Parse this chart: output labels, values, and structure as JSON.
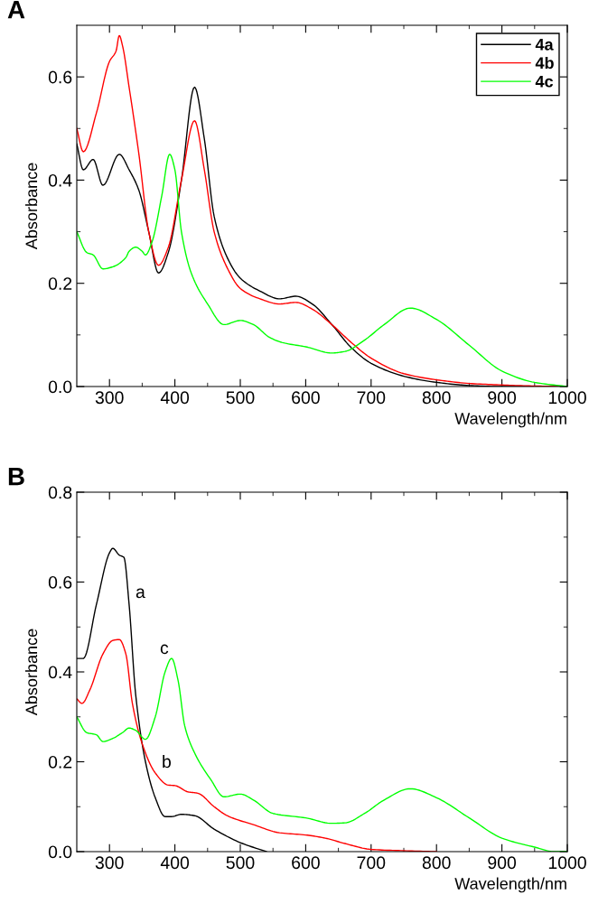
{
  "chart_data": [
    {
      "type": "line",
      "title": "A",
      "xlabel": "Wavelength/nm",
      "ylabel": "Absorbance",
      "xlim": [
        250,
        1000
      ],
      "ylim": [
        0,
        0.7
      ],
      "legend": "top right",
      "grid": false,
      "marker": "none",
      "line_style": "solid",
      "xticks": [
        300,
        {
          "value": 350,
          "label": null
        },
        400,
        {
          "value": 450,
          "label": null
        },
        500,
        {
          "value": 550,
          "label": null
        },
        600,
        {
          "value": 650,
          "label": null
        },
        700,
        {
          "value": 750,
          "label": null
        },
        800,
        {
          "value": 850,
          "label": null
        },
        900,
        {
          "value": 950,
          "label": null
        },
        1000
      ],
      "yticks": [
        {
          "value": 0,
          "label": "0.0"
        },
        {
          "value": 0.1,
          "label": null
        },
        0.2,
        {
          "value": 0.3,
          "label": null
        },
        0.4,
        {
          "value": 0.5,
          "label": null
        },
        0.6
      ],
      "series": [
        {
          "name": "4a",
          "color": "#000000",
          "x": [
            250,
            260,
            275,
            290,
            315,
            330,
            345,
            360,
            375,
            390,
            410,
            430,
            445,
            460,
            480,
            500,
            530,
            560,
            585,
            610,
            640,
            670,
            700,
            750,
            800,
            850,
            900,
            1000
          ],
          "values": [
            0.47,
            0.42,
            0.44,
            0.39,
            0.45,
            0.42,
            0.38,
            0.3,
            0.22,
            0.26,
            0.4,
            0.58,
            0.48,
            0.33,
            0.25,
            0.21,
            0.185,
            0.17,
            0.175,
            0.16,
            0.12,
            0.075,
            0.045,
            0.02,
            0.008,
            0.002,
            0.0,
            0.0
          ]
        },
        {
          "name": "4b",
          "color": "#ff0000",
          "x": [
            250,
            260,
            280,
            300,
            310,
            315,
            320,
            330,
            345,
            360,
            375,
            390,
            410,
            430,
            445,
            460,
            480,
            500,
            530,
            560,
            585,
            610,
            640,
            670,
            700,
            750,
            800,
            850,
            900,
            950,
            1000
          ],
          "values": [
            0.5,
            0.455,
            0.53,
            0.63,
            0.65,
            0.68,
            0.66,
            0.58,
            0.45,
            0.3,
            0.235,
            0.27,
            0.4,
            0.515,
            0.42,
            0.3,
            0.23,
            0.19,
            0.17,
            0.16,
            0.163,
            0.15,
            0.12,
            0.085,
            0.055,
            0.025,
            0.013,
            0.006,
            0.003,
            0.001,
            0.0
          ]
        },
        {
          "name": "4c",
          "color": "#00ff00",
          "x": [
            250,
            265,
            275,
            290,
            305,
            325,
            330,
            340,
            350,
            355,
            365,
            380,
            392,
            400,
            410,
            425,
            450,
            475,
            500,
            520,
            545,
            565,
            600,
            640,
            660,
            690,
            720,
            760,
            800,
            850,
            900,
            950,
            1000
          ],
          "values": [
            0.3,
            0.26,
            0.255,
            0.228,
            0.232,
            0.25,
            0.262,
            0.27,
            0.262,
            0.255,
            0.28,
            0.37,
            0.45,
            0.42,
            0.3,
            0.22,
            0.16,
            0.12,
            0.128,
            0.12,
            0.095,
            0.085,
            0.077,
            0.065,
            0.068,
            0.09,
            0.12,
            0.152,
            0.13,
            0.08,
            0.03,
            0.008,
            0.0
          ]
        }
      ]
    },
    {
      "type": "line",
      "title": "B",
      "xlabel": "Wavelength/nm",
      "ylabel": "Absorbance",
      "xlim": [
        250,
        1000
      ],
      "ylim": [
        0,
        0.8
      ],
      "grid": false,
      "marker": "none",
      "line_style": "solid",
      "xticks": [
        300,
        {
          "value": 350,
          "label": null
        },
        400,
        {
          "value": 450,
          "label": null
        },
        500,
        {
          "value": 550,
          "label": null
        },
        600,
        {
          "value": 650,
          "label": null
        },
        700,
        {
          "value": 750,
          "label": null
        },
        800,
        {
          "value": 850,
          "label": null
        },
        900,
        {
          "value": 950,
          "label": null
        },
        1000
      ],
      "yticks": [
        {
          "value": 0,
          "label": "0.0"
        },
        {
          "value": 0.1,
          "label": null
        },
        0.2,
        {
          "value": 0.3,
          "label": null
        },
        0.4,
        {
          "value": 0.5,
          "label": null
        },
        0.6,
        {
          "value": 0.7,
          "label": null
        },
        0.8
      ],
      "annotations": [
        "a",
        "c",
        "b"
      ],
      "series": [
        {
          "color": "#000000",
          "x": [
            250,
            260,
            280,
            300,
            305,
            315,
            322,
            330,
            340,
            355,
            370,
            385,
            395,
            410,
            430,
            460,
            500,
            540
          ],
          "values": [
            0.43,
            0.43,
            0.55,
            0.665,
            0.675,
            0.66,
            0.655,
            0.55,
            0.35,
            0.2,
            0.12,
            0.078,
            0.078,
            0.083,
            0.08,
            0.05,
            0.02,
            0.0
          ]
        },
        {
          "color": "#ff0000",
          "x": [
            250,
            258,
            270,
            290,
            305,
            315,
            325,
            335,
            350,
            370,
            390,
            400,
            420,
            435,
            460,
            480,
            520,
            560,
            600,
            630,
            660,
            700,
            750,
            800
          ],
          "values": [
            0.34,
            0.33,
            0.36,
            0.44,
            0.47,
            0.472,
            0.44,
            0.33,
            0.24,
            0.175,
            0.148,
            0.147,
            0.133,
            0.13,
            0.1,
            0.08,
            0.06,
            0.042,
            0.037,
            0.03,
            0.018,
            0.005,
            0.002,
            0.0
          ]
        },
        {
          "color": "#00ff00",
          "x": [
            250,
            265,
            280,
            290,
            305,
            320,
            330,
            340,
            355,
            370,
            385,
            395,
            405,
            415,
            430,
            455,
            475,
            500,
            520,
            550,
            600,
            640,
            660,
            690,
            720,
            760,
            800,
            850,
            900,
            950,
            980,
            1000
          ],
          "values": [
            0.3,
            0.265,
            0.26,
            0.245,
            0.252,
            0.265,
            0.275,
            0.27,
            0.25,
            0.3,
            0.4,
            0.43,
            0.38,
            0.28,
            0.22,
            0.16,
            0.122,
            0.128,
            0.115,
            0.085,
            0.075,
            0.063,
            0.064,
            0.085,
            0.115,
            0.14,
            0.12,
            0.075,
            0.03,
            0.01,
            0.0,
            0.0
          ]
        }
      ]
    }
  ]
}
